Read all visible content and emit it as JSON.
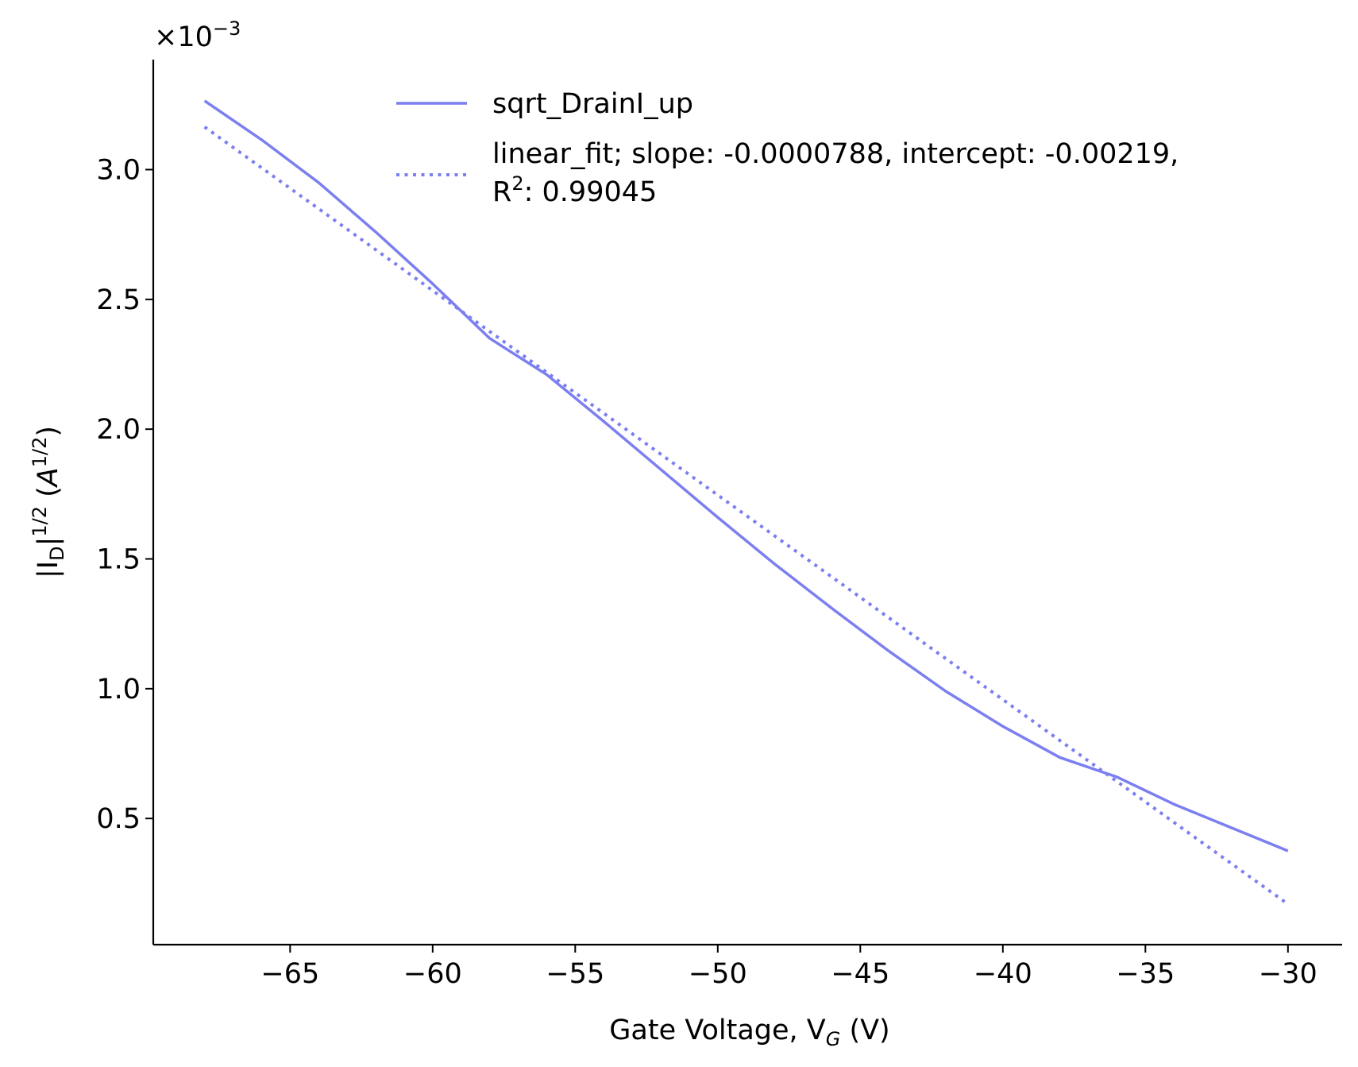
{
  "chart_data": {
    "type": "line",
    "xlabel": "Gate Voltage, V",
    "xlabel_sub": "G",
    "xlabel_unit": " (V)",
    "ylabel_parts": [
      "|I",
      "D",
      "|",
      "1/2",
      " (",
      "A",
      "1/2",
      ")"
    ],
    "y_multiplier": [
      "×10",
      "−3"
    ],
    "xlim": [
      -69.8,
      -28.1
    ],
    "ylim": [
      1.39e-05,
      0.0034239
    ],
    "x_ticks": [
      -65,
      -60,
      -55,
      -50,
      -45,
      -40,
      -35,
      -30
    ],
    "x_tick_labels": [
      "−65",
      "−60",
      "−55",
      "−50",
      "−45",
      "−40",
      "−35",
      "−30"
    ],
    "y_ticks": [
      0.0005,
      0.001,
      0.0015,
      0.002,
      0.0025,
      0.003
    ],
    "y_tick_labels": [
      "0.5",
      "1.0",
      "1.5",
      "2.0",
      "2.5",
      "3.0"
    ],
    "grid": false,
    "legend_position": "top",
    "series": [
      {
        "name": "sqrt_DrainI_up",
        "style": "solid",
        "color": "#7b7ff0",
        "x": [
          -68,
          -66,
          -64,
          -62,
          -60,
          -58,
          -56,
          -54,
          -52,
          -50,
          -48,
          -46,
          -44,
          -42,
          -40,
          -38,
          -36,
          -34,
          -32,
          -30
        ],
        "y": [
          0.003265,
          0.003115,
          0.00295,
          0.00276,
          0.00256,
          0.00235,
          0.00221,
          0.00203,
          0.001845,
          0.00166,
          0.00148,
          0.00131,
          0.001145,
          0.00099,
          0.000855,
          0.000735,
          0.00066,
          0.000555,
          0.000465,
          0.000375
        ]
      },
      {
        "name": "linear_fit; slope: -0.0000788, intercept: -0.00219,",
        "name_line2": [
          "R",
          "2",
          ": 0.99045"
        ],
        "style": "dotted",
        "color": "#7b7ff0",
        "x": [
          -68,
          -30
        ],
        "y": [
          0.0031644,
          0.00017
        ]
      }
    ]
  }
}
